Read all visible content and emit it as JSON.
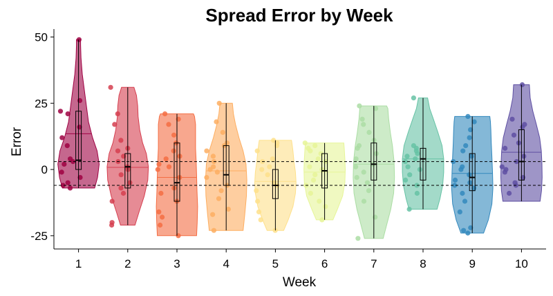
{
  "chart_data": {
    "type": "violin",
    "title": "Spread Error by Week",
    "xlabel": "Week",
    "ylabel": "Error",
    "categories": [
      "1",
      "2",
      "3",
      "4",
      "5",
      "6",
      "7",
      "8",
      "9",
      "10"
    ],
    "yticks": [
      -25,
      0,
      25,
      50
    ],
    "ytick_labels": [
      "-25",
      "0",
      "25",
      "50"
    ],
    "ylim": [
      -30,
      53
    ],
    "reference_lines": [
      3,
      -6
    ],
    "colors": [
      "#9e0142",
      "#d53e4f",
      "#f46d43",
      "#fdae61",
      "#fee08b",
      "#e6f598",
      "#abdda4",
      "#66c2a5",
      "#3288bd",
      "#5e4fa2"
    ],
    "series": [
      {
        "week": "1",
        "min": -7,
        "max": 49,
        "q1": 0,
        "median": 3.5,
        "q3": 22,
        "mean": 13.5,
        "density": [
          [
            -7,
            0.78
          ],
          [
            -3,
            0.92
          ],
          [
            2,
            1
          ],
          [
            7,
            0.9
          ],
          [
            12,
            0.68
          ],
          [
            18,
            0.48
          ],
          [
            24,
            0.38
          ],
          [
            30,
            0.28
          ],
          [
            36,
            0.18
          ],
          [
            42,
            0.12
          ],
          [
            47,
            0.1
          ],
          [
            49,
            0.1
          ]
        ],
        "points": [
          49,
          26,
          22,
          21,
          16,
          12,
          9,
          4,
          3,
          2,
          -1,
          -3,
          -5,
          -6,
          -7
        ]
      },
      {
        "week": "2",
        "min": -21,
        "max": 31,
        "q1": -7,
        "median": 1,
        "q3": 6,
        "mean": 0.8,
        "density": [
          [
            -21,
            0.35
          ],
          [
            -16,
            0.55
          ],
          [
            -10,
            0.8
          ],
          [
            -4,
            0.97
          ],
          [
            1,
            1
          ],
          [
            6,
            0.9
          ],
          [
            10,
            0.72
          ],
          [
            15,
            0.58
          ],
          [
            20,
            0.5
          ],
          [
            24,
            0.48
          ],
          [
            28,
            0.42
          ],
          [
            31,
            0.3
          ]
        ],
        "points": [
          31,
          21,
          17,
          11,
          8,
          7,
          5,
          3,
          1,
          0,
          -2,
          -5,
          -7,
          -9,
          -12,
          -20,
          -21
        ]
      },
      {
        "week": "3",
        "min": -25,
        "max": 21,
        "q1": -12,
        "median": -5,
        "q3": 10,
        "mean": -3,
        "density": [
          [
            -25,
            0.95
          ],
          [
            -20,
            0.98
          ],
          [
            -14,
            1
          ],
          [
            -8,
            0.97
          ],
          [
            -2,
            0.95
          ],
          [
            3,
            0.93
          ],
          [
            8,
            0.9
          ],
          [
            13,
            0.9
          ],
          [
            17,
            0.9
          ],
          [
            20,
            0.85
          ],
          [
            21,
            0.8
          ]
        ],
        "points": [
          21,
          19,
          17,
          13,
          10,
          7,
          5,
          4,
          2,
          1,
          0,
          -3,
          -7,
          -9,
          -12,
          -16,
          -18,
          -21,
          -25
        ]
      },
      {
        "week": "4",
        "min": -23,
        "max": 25,
        "q1": -6,
        "median": -2,
        "q3": 9,
        "mean": -0.5,
        "density": [
          [
            -23,
            0.82
          ],
          [
            -17,
            0.9
          ],
          [
            -10,
            0.98
          ],
          [
            -4,
            1
          ],
          [
            2,
            0.96
          ],
          [
            7,
            0.82
          ],
          [
            12,
            0.62
          ],
          [
            17,
            0.45
          ],
          [
            21,
            0.35
          ],
          [
            25,
            0.3
          ]
        ],
        "points": [
          25,
          18,
          14,
          10,
          9,
          7,
          5,
          3,
          1,
          0,
          -1,
          -3,
          -6,
          -8,
          -11,
          -15,
          -17,
          -23
        ]
      },
      {
        "week": "5",
        "min": -23,
        "max": 11,
        "q1": -11,
        "median": -6,
        "q3": 0,
        "mean": -4.5,
        "density": [
          [
            -23,
            0.4
          ],
          [
            -19,
            0.62
          ],
          [
            -14,
            0.85
          ],
          [
            -9,
            0.97
          ],
          [
            -5,
            1
          ],
          [
            -1,
            0.97
          ],
          [
            3,
            0.9
          ],
          [
            7,
            0.85
          ],
          [
            10,
            0.8
          ],
          [
            11,
            0.78
          ]
        ],
        "points": [
          11,
          10,
          9,
          7,
          4,
          3,
          1,
          0,
          -2,
          -5,
          -6,
          -8,
          -12,
          -16,
          -19,
          -23
        ]
      },
      {
        "week": "6",
        "min": -19,
        "max": 10,
        "q1": -7,
        "median": -0.5,
        "q3": 6,
        "mean": -1,
        "density": [
          [
            -19,
            0.4
          ],
          [
            -15,
            0.62
          ],
          [
            -10,
            0.87
          ],
          [
            -5,
            0.98
          ],
          [
            0,
            1
          ],
          [
            4,
            0.98
          ],
          [
            8,
            0.95
          ],
          [
            10,
            0.93
          ]
        ],
        "points": [
          10,
          9,
          8,
          7,
          6,
          4,
          3,
          1,
          0,
          -2,
          -4,
          -6,
          -9,
          -12,
          -14,
          -19
        ]
      },
      {
        "week": "7",
        "min": -26,
        "max": 24,
        "q1": -4,
        "median": 2,
        "q3": 10,
        "mean": 2,
        "density": [
          [
            -26,
            0.45
          ],
          [
            -21,
            0.62
          ],
          [
            -15,
            0.82
          ],
          [
            -9,
            0.96
          ],
          [
            -3,
            1
          ],
          [
            3,
            0.98
          ],
          [
            9,
            0.9
          ],
          [
            14,
            0.8
          ],
          [
            19,
            0.72
          ],
          [
            23,
            0.68
          ],
          [
            24,
            0.62
          ]
        ],
        "points": [
          24,
          23,
          19,
          17,
          14,
          11,
          9,
          8,
          6,
          4,
          2,
          1,
          -1,
          -3,
          -5,
          -8,
          -12,
          -18,
          -26
        ]
      },
      {
        "week": "8",
        "min": -15,
        "max": 27,
        "q1": -4,
        "median": 4,
        "q3": 8,
        "mean": 4,
        "density": [
          [
            -15,
            0.68
          ],
          [
            -11,
            0.82
          ],
          [
            -6,
            0.95
          ],
          [
            -1,
            1
          ],
          [
            4,
            1
          ],
          [
            9,
            0.92
          ],
          [
            14,
            0.72
          ],
          [
            19,
            0.5
          ],
          [
            23,
            0.32
          ],
          [
            27,
            0.22
          ]
        ],
        "points": [
          27,
          9,
          8,
          7,
          6,
          5,
          4,
          3,
          1,
          0,
          -2,
          -4,
          -6,
          -9,
          -15
        ]
      },
      {
        "week": "9",
        "min": -24,
        "max": 20,
        "q1": -8,
        "median": -3,
        "q3": 6,
        "mean": -1.5,
        "density": [
          [
            -24,
            0.55
          ],
          [
            -19,
            0.78
          ],
          [
            -13,
            0.95
          ],
          [
            -7,
            1
          ],
          [
            -1,
            0.98
          ],
          [
            5,
            0.95
          ],
          [
            10,
            0.92
          ],
          [
            15,
            0.9
          ],
          [
            18,
            0.88
          ],
          [
            20,
            0.85
          ]
        ],
        "points": [
          20,
          18,
          15,
          12,
          9,
          7,
          5,
          3,
          1,
          0,
          -2,
          -4,
          -5,
          -6,
          -7,
          -9,
          -12,
          -16,
          -22,
          -23,
          -24
        ]
      },
      {
        "week": "10",
        "min": -12,
        "max": 32,
        "q1": -4,
        "median": 3,
        "q3": 15,
        "mean": 6.5,
        "density": [
          [
            -12,
            0.9
          ],
          [
            -8,
            0.97
          ],
          [
            -3,
            1
          ],
          [
            2,
            0.99
          ],
          [
            7,
            0.96
          ],
          [
            12,
            0.88
          ],
          [
            17,
            0.72
          ],
          [
            22,
            0.55
          ],
          [
            27,
            0.42
          ],
          [
            32,
            0.38
          ]
        ],
        "points": [
          32,
          19,
          17,
          16,
          13,
          10,
          8,
          5,
          3,
          1,
          0,
          -1,
          -3,
          -5,
          -6,
          -9
        ]
      }
    ]
  }
}
